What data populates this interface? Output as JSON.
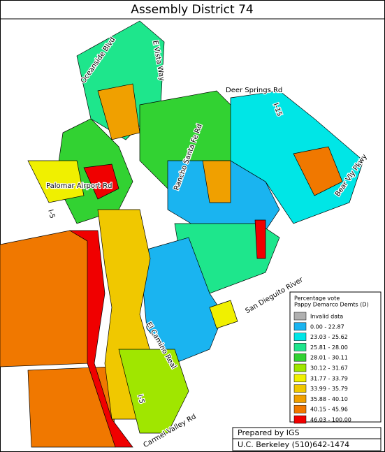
{
  "title": "Assembly District 74",
  "labels": {
    "vista": "E Vista Way",
    "oceanside": "Oceanside Blvd",
    "deer": "Deer Springs Rd",
    "i15": "I-15",
    "bear": "Bear Vly Pkwy",
    "palomar": "Palomar Airport Rd",
    "i5": "I-5",
    "i5b": "I-5",
    "rancho": "Rancho Santa Fe Rd",
    "dieguito": "San Dieguito River",
    "camino": "El Camino Real",
    "carmel": "Carmel Valley Rd"
  },
  "legend": {
    "title_lines": [
      "Percentage vote",
      "Pappy Demarco Demts (D)"
    ],
    "items": [
      {
        "label": "Invalid data",
        "color": "#b0b0b0"
      },
      {
        "label": "0.00 -  22.87",
        "color": "#1ab4f0"
      },
      {
        "label": "23.03 -  25.62",
        "color": "#00e6e6"
      },
      {
        "label": "25.81 -  28.00",
        "color": "#1ee68c"
      },
      {
        "label": "28.01 -  30.11",
        "color": "#32d232"
      },
      {
        "label": "30.12 -  31.67",
        "color": "#a0e600"
      },
      {
        "label": "31.77 -  33.79",
        "color": "#f0f000"
      },
      {
        "label": "33.99 -  35.79",
        "color": "#f0c800"
      },
      {
        "label": "35.88 -  40.10",
        "color": "#f0a000"
      },
      {
        "label": "40.15 -  45.96",
        "color": "#f07800"
      },
      {
        "label": "46.03 - 100.00",
        "color": "#f00000"
      }
    ]
  },
  "footer": {
    "lines": [
      "Prepared by IGS",
      "U.C. Berkeley (510)642-1474"
    ]
  }
}
